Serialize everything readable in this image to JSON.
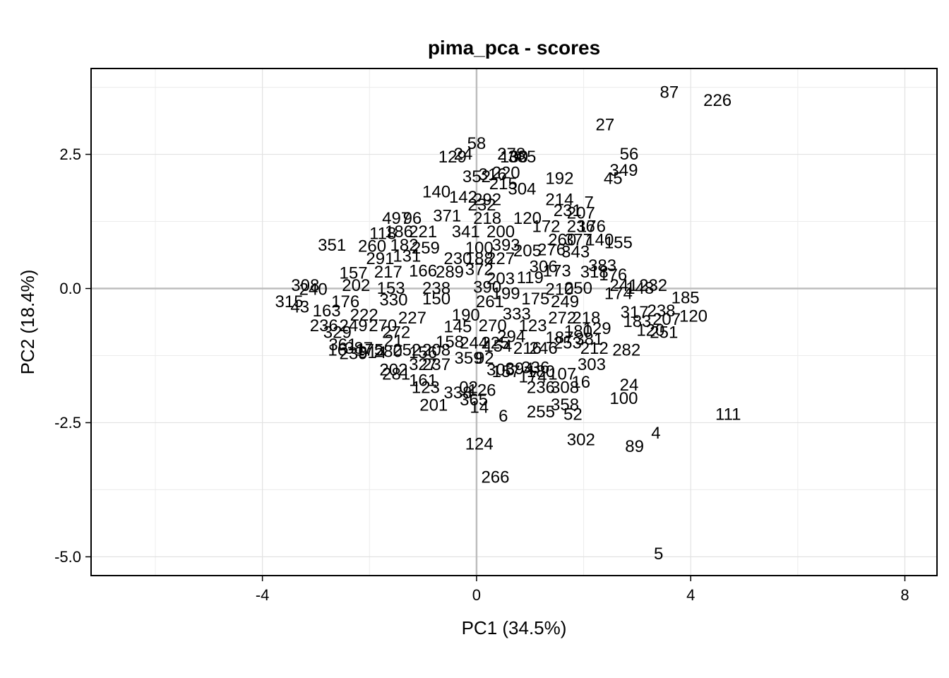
{
  "chart_data": {
    "type": "scatter",
    "title": "pima_pca - scores",
    "xlabel": "PC1 (34.5%)",
    "ylabel": "PC2 (18.4%)",
    "xlim": [
      -7.2,
      8.6
    ],
    "ylim": [
      -5.35,
      4.1
    ],
    "x_ticks": [
      {
        "value": -4,
        "label": "-4"
      },
      {
        "value": 0,
        "label": "0"
      },
      {
        "value": 4,
        "label": "4"
      },
      {
        "value": 8,
        "label": "8"
      }
    ],
    "y_ticks": [
      {
        "value": 2.5,
        "label": "2.5"
      },
      {
        "value": 0,
        "label": "0.0"
      },
      {
        "value": -2.5,
        "label": "-2.5"
      },
      {
        "value": -5,
        "label": "-5.0"
      }
    ],
    "grid": true,
    "zero_lines": true,
    "points": [
      {
        "label": "87",
        "x": 3.6,
        "y": 3.65
      },
      {
        "label": "226",
        "x": 4.5,
        "y": 3.5
      },
      {
        "label": "27",
        "x": 2.4,
        "y": 3.05
      },
      {
        "label": "56",
        "x": 2.85,
        "y": 2.5
      },
      {
        "label": "349",
        "x": 2.75,
        "y": 2.2
      },
      {
        "label": "45",
        "x": 2.55,
        "y": 2.05
      },
      {
        "label": "58",
        "x": 0.0,
        "y": 2.7
      },
      {
        "label": "129",
        "x": -0.45,
        "y": 2.45
      },
      {
        "label": "24",
        "x": -0.25,
        "y": 2.5
      },
      {
        "label": "278",
        "x": 0.65,
        "y": 2.5
      },
      {
        "label": "130",
        "x": 0.7,
        "y": 2.45
      },
      {
        "label": "385",
        "x": 0.85,
        "y": 2.45
      },
      {
        "label": "352",
        "x": 0.0,
        "y": 2.08
      },
      {
        "label": "316",
        "x": 0.3,
        "y": 2.12
      },
      {
        "label": "220",
        "x": 0.55,
        "y": 2.15
      },
      {
        "label": "215",
        "x": 0.5,
        "y": 1.95
      },
      {
        "label": "304",
        "x": 0.85,
        "y": 1.85
      },
      {
        "label": "192",
        "x": 1.55,
        "y": 2.05
      },
      {
        "label": "214",
        "x": 1.55,
        "y": 1.65
      },
      {
        "label": "7",
        "x": 2.1,
        "y": 1.6
      },
      {
        "label": "140",
        "x": -0.75,
        "y": 1.8
      },
      {
        "label": "142",
        "x": -0.25,
        "y": 1.7
      },
      {
        "label": "292",
        "x": 0.2,
        "y": 1.65
      },
      {
        "label": "232",
        "x": 0.1,
        "y": 1.55
      },
      {
        "label": "231",
        "x": 1.7,
        "y": 1.45
      },
      {
        "label": "207",
        "x": 1.95,
        "y": 1.4
      },
      {
        "label": "497",
        "x": -1.5,
        "y": 1.3
      },
      {
        "label": "96",
        "x": -1.2,
        "y": 1.3
      },
      {
        "label": "371",
        "x": -0.55,
        "y": 1.35
      },
      {
        "label": "218",
        "x": 0.2,
        "y": 1.3
      },
      {
        "label": "120",
        "x": 0.95,
        "y": 1.3
      },
      {
        "label": "172",
        "x": 1.3,
        "y": 1.15
      },
      {
        "label": "236",
        "x": 1.95,
        "y": 1.15
      },
      {
        "label": "176",
        "x": 2.15,
        "y": 1.15
      },
      {
        "label": "118",
        "x": -1.75,
        "y": 1.02
      },
      {
        "label": "186",
        "x": -1.45,
        "y": 1.05
      },
      {
        "label": "221",
        "x": -1.0,
        "y": 1.05
      },
      {
        "label": "341",
        "x": -0.2,
        "y": 1.05
      },
      {
        "label": "200",
        "x": 0.45,
        "y": 1.05
      },
      {
        "label": "260",
        "x": 1.6,
        "y": 0.9
      },
      {
        "label": "377",
        "x": 1.9,
        "y": 0.9
      },
      {
        "label": "140",
        "x": 2.3,
        "y": 0.9
      },
      {
        "label": "155",
        "x": 2.65,
        "y": 0.85
      },
      {
        "label": "351",
        "x": -2.7,
        "y": 0.8
      },
      {
        "label": "260",
        "x": -1.95,
        "y": 0.78
      },
      {
        "label": "182",
        "x": -1.35,
        "y": 0.8
      },
      {
        "label": "259",
        "x": -0.95,
        "y": 0.75
      },
      {
        "label": "100",
        "x": 0.05,
        "y": 0.75
      },
      {
        "label": "393",
        "x": 0.55,
        "y": 0.8
      },
      {
        "label": "205",
        "x": 0.95,
        "y": 0.7
      },
      {
        "label": "276",
        "x": 1.4,
        "y": 0.72
      },
      {
        "label": "343",
        "x": 1.85,
        "y": 0.68
      },
      {
        "label": "291",
        "x": -1.8,
        "y": 0.55
      },
      {
        "label": "131",
        "x": -1.3,
        "y": 0.6
      },
      {
        "label": "230",
        "x": -0.35,
        "y": 0.55
      },
      {
        "label": "188",
        "x": 0.05,
        "y": 0.55
      },
      {
        "label": "227",
        "x": 0.45,
        "y": 0.55
      },
      {
        "label": "306",
        "x": 1.25,
        "y": 0.4
      },
      {
        "label": "383",
        "x": 2.35,
        "y": 0.42
      },
      {
        "label": "157",
        "x": -2.3,
        "y": 0.28
      },
      {
        "label": "217",
        "x": -1.65,
        "y": 0.3
      },
      {
        "label": "166",
        "x": -1.0,
        "y": 0.32
      },
      {
        "label": "289",
        "x": -0.5,
        "y": 0.3
      },
      {
        "label": "372",
        "x": 0.05,
        "y": 0.35
      },
      {
        "label": "119",
        "x": 1.0,
        "y": 0.2
      },
      {
        "label": "173",
        "x": 1.5,
        "y": 0.32
      },
      {
        "label": "318",
        "x": 2.2,
        "y": 0.3
      },
      {
        "label": "203",
        "x": 0.45,
        "y": 0.18
      },
      {
        "label": "241",
        "x": 2.75,
        "y": 0.05
      },
      {
        "label": "148",
        "x": 3.05,
        "y": 0.0
      },
      {
        "label": "232",
        "x": 3.3,
        "y": 0.05
      },
      {
        "label": "308",
        "x": -3.2,
        "y": 0.05
      },
      {
        "label": "240",
        "x": -3.05,
        "y": -0.02
      },
      {
        "label": "202",
        "x": -2.25,
        "y": 0.05
      },
      {
        "label": "153",
        "x": -1.6,
        "y": 0.0
      },
      {
        "label": "238",
        "x": -0.75,
        "y": 0.0
      },
      {
        "label": "390",
        "x": 0.2,
        "y": 0.02
      },
      {
        "label": "199",
        "x": 0.55,
        "y": -0.1
      },
      {
        "label": "210",
        "x": 1.55,
        "y": -0.02
      },
      {
        "label": "250",
        "x": 1.9,
        "y": 0.0
      },
      {
        "label": "176",
        "x": 2.55,
        "y": 0.25
      },
      {
        "label": "174",
        "x": 2.65,
        "y": -0.1
      },
      {
        "label": "315",
        "x": -3.5,
        "y": -0.25
      },
      {
        "label": "176",
        "x": -2.45,
        "y": -0.25
      },
      {
        "label": "330",
        "x": -1.55,
        "y": -0.22
      },
      {
        "label": "150",
        "x": -0.75,
        "y": -0.2
      },
      {
        "label": "261",
        "x": 0.25,
        "y": -0.25
      },
      {
        "label": "175",
        "x": 1.1,
        "y": -0.2
      },
      {
        "label": "249",
        "x": 1.65,
        "y": -0.25
      },
      {
        "label": "185",
        "x": 3.9,
        "y": -0.18
      },
      {
        "label": "43",
        "x": -3.3,
        "y": -0.35
      },
      {
        "label": "163",
        "x": -2.8,
        "y": -0.42
      },
      {
        "label": "317",
        "x": 2.95,
        "y": -0.45
      },
      {
        "label": "238",
        "x": 3.45,
        "y": -0.42
      },
      {
        "label": "120",
        "x": 4.05,
        "y": -0.52
      },
      {
        "label": "207",
        "x": 3.55,
        "y": -0.58
      },
      {
        "label": "222",
        "x": -2.1,
        "y": -0.5
      },
      {
        "label": "227",
        "x": -1.2,
        "y": -0.55
      },
      {
        "label": "190",
        "x": -0.2,
        "y": -0.5
      },
      {
        "label": "333",
        "x": 0.75,
        "y": -0.48
      },
      {
        "label": "272",
        "x": 1.6,
        "y": -0.55
      },
      {
        "label": "218",
        "x": 2.05,
        "y": -0.55
      },
      {
        "label": "183",
        "x": 3.0,
        "y": -0.62
      },
      {
        "label": "236",
        "x": -2.85,
        "y": -0.7
      },
      {
        "label": "249",
        "x": -2.3,
        "y": -0.7
      },
      {
        "label": "270",
        "x": -1.75,
        "y": -0.7
      },
      {
        "label": "145",
        "x": -0.35,
        "y": -0.72
      },
      {
        "label": "270",
        "x": 0.3,
        "y": -0.7
      },
      {
        "label": "123",
        "x": 1.05,
        "y": -0.7
      },
      {
        "label": "129",
        "x": 2.25,
        "y": -0.75
      },
      {
        "label": "329",
        "x": -2.6,
        "y": -0.82
      },
      {
        "label": "272",
        "x": -1.5,
        "y": -0.82
      },
      {
        "label": "180",
        "x": 1.9,
        "y": -0.8
      },
      {
        "label": "120",
        "x": 3.25,
        "y": -0.78
      },
      {
        "label": "251",
        "x": 3.5,
        "y": -0.82
      },
      {
        "label": "381",
        "x": 2.1,
        "y": -0.95
      },
      {
        "label": "294",
        "x": 0.65,
        "y": -0.9
      },
      {
        "label": "187",
        "x": 1.55,
        "y": -0.92
      },
      {
        "label": "21",
        "x": -1.55,
        "y": -0.98
      },
      {
        "label": "158",
        "x": -0.5,
        "y": -1.0
      },
      {
        "label": "244",
        "x": -0.05,
        "y": -1.02
      },
      {
        "label": "225",
        "x": 0.35,
        "y": -1.02
      },
      {
        "label": "253",
        "x": 1.7,
        "y": -1.02
      },
      {
        "label": "361",
        "x": -2.5,
        "y": -1.05
      },
      {
        "label": "16",
        "x": -2.6,
        "y": -1.15
      },
      {
        "label": "387",
        "x": -2.2,
        "y": -1.12
      },
      {
        "label": "175",
        "x": -2.0,
        "y": -1.15
      },
      {
        "label": "252",
        "x": -1.3,
        "y": -1.15
      },
      {
        "label": "208",
        "x": -0.75,
        "y": -1.15
      },
      {
        "label": "154",
        "x": 0.4,
        "y": -1.08
      },
      {
        "label": "216",
        "x": 0.95,
        "y": -1.12
      },
      {
        "label": "246",
        "x": 1.25,
        "y": -1.12
      },
      {
        "label": "212",
        "x": 2.2,
        "y": -1.12
      },
      {
        "label": "282",
        "x": 2.8,
        "y": -1.15
      },
      {
        "label": "239",
        "x": -2.3,
        "y": -1.22
      },
      {
        "label": "314",
        "x": -1.95,
        "y": -1.2
      },
      {
        "label": "280",
        "x": -1.65,
        "y": -1.18
      },
      {
        "label": "156",
        "x": -1.0,
        "y": -1.2
      },
      {
        "label": "359",
        "x": -0.15,
        "y": -1.3
      },
      {
        "label": "92",
        "x": 0.15,
        "y": -1.3
      },
      {
        "label": "303",
        "x": 2.15,
        "y": -1.42
      },
      {
        "label": "202",
        "x": -1.55,
        "y": -1.52
      },
      {
        "label": "327",
        "x": -1.0,
        "y": -1.42
      },
      {
        "label": "237",
        "x": -0.75,
        "y": -1.42
      },
      {
        "label": "305",
        "x": 0.45,
        "y": -1.52
      },
      {
        "label": "157",
        "x": 0.55,
        "y": -1.55
      },
      {
        "label": "394",
        "x": 0.8,
        "y": -1.5
      },
      {
        "label": "336",
        "x": 1.1,
        "y": -1.48
      },
      {
        "label": "180",
        "x": 1.2,
        "y": -1.55
      },
      {
        "label": "107",
        "x": 1.6,
        "y": -1.6
      },
      {
        "label": "281",
        "x": -1.5,
        "y": -1.6
      },
      {
        "label": "161",
        "x": -1.0,
        "y": -1.72
      },
      {
        "label": "174",
        "x": 1.05,
        "y": -1.65
      },
      {
        "label": "16",
        "x": 1.95,
        "y": -1.75
      },
      {
        "label": "123",
        "x": -0.95,
        "y": -1.85
      },
      {
        "label": "02",
        "x": -0.15,
        "y": -1.85
      },
      {
        "label": "126",
        "x": 0.1,
        "y": -1.9
      },
      {
        "label": "338",
        "x": -0.35,
        "y": -1.95
      },
      {
        "label": "236",
        "x": 1.2,
        "y": -1.85
      },
      {
        "label": "308",
        "x": 1.65,
        "y": -1.85
      },
      {
        "label": "24",
        "x": 2.85,
        "y": -1.8
      },
      {
        "label": "365",
        "x": -0.05,
        "y": -2.08
      },
      {
        "label": "100",
        "x": 2.75,
        "y": -2.05
      },
      {
        "label": "201",
        "x": -0.8,
        "y": -2.18
      },
      {
        "label": "14",
        "x": 0.05,
        "y": -2.22
      },
      {
        "label": "358",
        "x": 1.65,
        "y": -2.17
      },
      {
        "label": "255",
        "x": 1.2,
        "y": -2.3
      },
      {
        "label": "52",
        "x": 1.8,
        "y": -2.35
      },
      {
        "label": "6",
        "x": 0.5,
        "y": -2.38
      },
      {
        "label": "111",
        "x": 4.7,
        "y": -2.35
      },
      {
        "label": "4",
        "x": 3.35,
        "y": -2.7
      },
      {
        "label": "302",
        "x": 1.95,
        "y": -2.82
      },
      {
        "label": "89",
        "x": 2.95,
        "y": -2.95
      },
      {
        "label": "124",
        "x": 0.05,
        "y": -2.9
      },
      {
        "label": "266",
        "x": 0.35,
        "y": -3.52
      },
      {
        "label": "5",
        "x": 3.4,
        "y": -4.95
      }
    ]
  }
}
